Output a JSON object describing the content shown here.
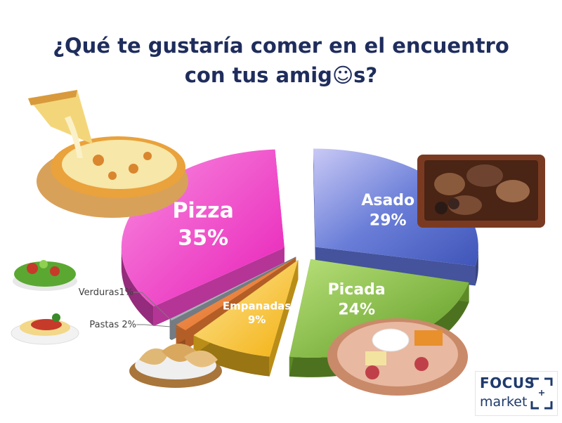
{
  "title": {
    "line1": "¿Qué te gustaría comer en el encuentro",
    "line2": "con tus amig☺s?"
  },
  "chart_data": {
    "type": "pie",
    "style": "3d-exploded",
    "title": "¿Qué te gustaría comer en el encuentro con tus amig☺s?",
    "series": [
      {
        "values": [
          {
            "label": "Pizza",
            "value": 35,
            "display": "35%",
            "color": "#f046c8"
          },
          {
            "label": "Asado",
            "value": 29,
            "display": "29%",
            "color": "#5a6fd0"
          },
          {
            "label": "Picada",
            "value": 24,
            "display": "24%",
            "color": "#7cb832"
          },
          {
            "label": "Empanadas",
            "value": 9,
            "display": "9%",
            "color": "#f7bc1e"
          },
          {
            "label": "Pastas",
            "value": 2,
            "display": "Pastas 2%",
            "color": "#ee7d33"
          },
          {
            "label": "Verduras",
            "value": 1,
            "display": "Verduras1%",
            "color": "#9aa4ad"
          }
        ]
      }
    ]
  },
  "logo": {
    "line1": "FOCUS",
    "line2": "market"
  }
}
